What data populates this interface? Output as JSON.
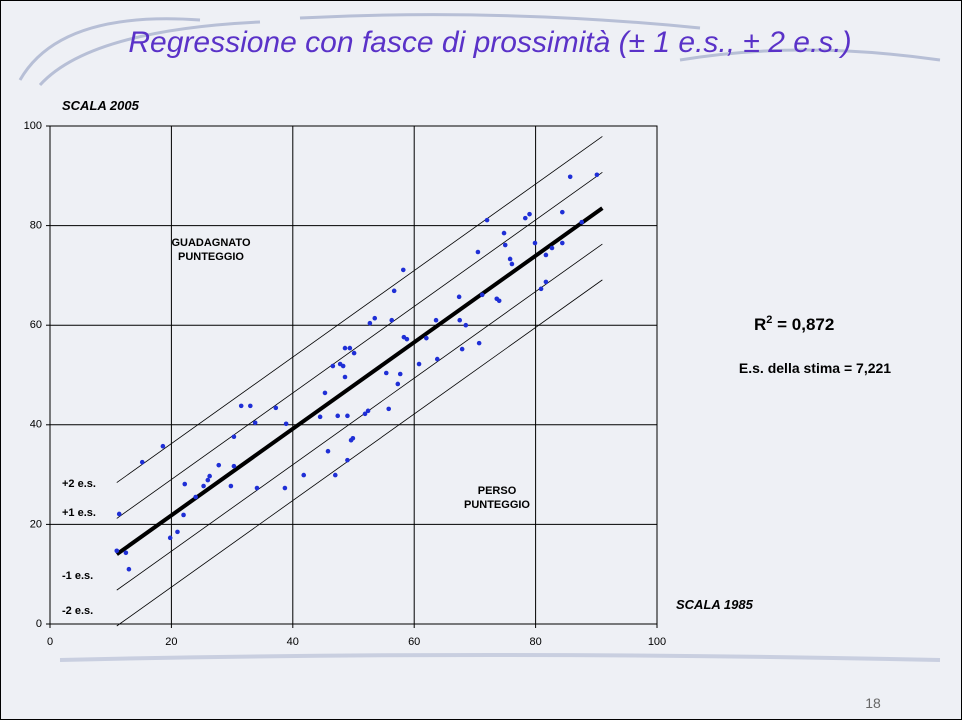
{
  "chart_data": {
    "type": "scatter",
    "title": "Regressione con fasce di prossimità (± 1 e.s., ± 2 e.s.)",
    "y_label": "SCALA 2005",
    "x_label": "SCALA 1985",
    "annotations": {
      "gained": [
        "GUADAGNATO",
        "PUNTEGGIO"
      ],
      "lost": [
        "PERSO",
        "PUNTEGGIO"
      ],
      "r2": {
        "base": "R",
        "sup": "2",
        "rest": " = 0,872"
      },
      "se": "E.s. della stima = 7,221"
    },
    "page_number": "18",
    "xlim": [
      0,
      100
    ],
    "ylim": [
      0,
      100
    ],
    "xticks": [
      0,
      20,
      40,
      60,
      80,
      100
    ],
    "yticks": [
      0,
      20,
      40,
      60,
      80,
      100
    ],
    "grid": true,
    "points": {
      "color": "#1f2fd6",
      "x": [
        11.4,
        11,
        12.5,
        13,
        15.2,
        18.6,
        19.8,
        21,
        22.2,
        22,
        24,
        25.3,
        26,
        26.3,
        27.8,
        29.8,
        30.3,
        30.3,
        31.5,
        33,
        33.8,
        34.1,
        38.7,
        38.9,
        37.2,
        41.8,
        44.5,
        45.3,
        45.8,
        46.6,
        47,
        47.4,
        47.8,
        48.3,
        48.6,
        48.6,
        49,
        49,
        49.4,
        49.6,
        49.9,
        50.1,
        51.9,
        52.4,
        52.7,
        53.5,
        55.4,
        55.8,
        56.3,
        56.7,
        57.3,
        57.7,
        58.2,
        58.3,
        58.8,
        60.8,
        62,
        63.6,
        63.8,
        67.4,
        67.5,
        67.9,
        68.5,
        70.5,
        70.7,
        71.2,
        72,
        73.6,
        74,
        74.8,
        75,
        75.8,
        76.1,
        78.3,
        79,
        79.9,
        80.9,
        81.7,
        81.7,
        82.7,
        84.4,
        84.4,
        85.7,
        87.6,
        90.1
      ],
      "y": [
        22.1,
        14.7,
        14.3,
        11,
        32.5,
        35.7,
        17.3,
        18.5,
        28.1,
        21.9,
        25.5,
        27.7,
        28.9,
        29.7,
        31.9,
        27.7,
        37.6,
        31.7,
        43.8,
        43.8,
        40.4,
        27.3,
        27.3,
        40.2,
        43.4,
        29.9,
        41.6,
        46.4,
        34.7,
        51.8,
        29.9,
        41.8,
        52.2,
        51.8,
        55.4,
        49.6,
        41.8,
        32.9,
        55.4,
        36.9,
        37.3,
        54.4,
        42.2,
        42.8,
        60.4,
        61.4,
        50.4,
        43.2,
        61,
        66.9,
        48.2,
        50.2,
        71.1,
        57.6,
        57.2,
        52.2,
        57.4,
        61,
        53.2,
        65.7,
        61,
        55.2,
        60,
        74.7,
        56.4,
        66.1,
        81.1,
        65.3,
        64.9,
        78.5,
        76.1,
        73.3,
        72.3,
        81.5,
        82.3,
        76.5,
        67.3,
        68.7,
        74.1,
        75.5,
        82.7,
        76.5,
        89.8,
        80.7,
        90.2
      ]
    },
    "regression": {
      "x": [
        11,
        91
      ],
      "y": [
        14,
        83.5
      ]
    },
    "bands": [
      {
        "label": "+2 e.s.",
        "x": [
          11,
          91
        ],
        "y": [
          28.4,
          97.9
        ]
      },
      {
        "label": "+1 e.s.",
        "x": [
          11,
          91
        ],
        "y": [
          21.2,
          90.7
        ]
      },
      {
        "label": "-1 e.s.",
        "x": [
          11,
          91
        ],
        "y": [
          6.8,
          76.3
        ]
      },
      {
        "label": "-2 e.s.",
        "x": [
          11,
          91
        ],
        "y": [
          -0.4,
          69.1
        ]
      }
    ]
  }
}
